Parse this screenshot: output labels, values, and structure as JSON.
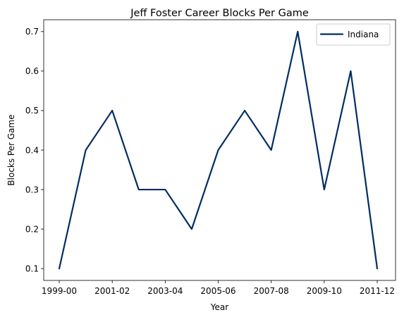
{
  "chart_data": {
    "type": "line",
    "title": "Jeff Foster  Career Blocks Per Game",
    "xlabel": "Year",
    "ylabel": "Blocks Per Game",
    "x": [
      "1999-00",
      "2000-01",
      "2001-02",
      "2002-03",
      "2003-04",
      "2004-05",
      "2005-06",
      "2006-07",
      "2007-08",
      "2008-09",
      "2009-10",
      "2010-11",
      "2011-12"
    ],
    "x_tick_labels": [
      "1999-00",
      "2001-02",
      "2003-04",
      "2005-06",
      "2007-08",
      "2009-10",
      "2011-12"
    ],
    "y_ticks": [
      "0.1",
      "0.2",
      "0.3",
      "0.4",
      "0.5",
      "0.6",
      "0.7"
    ],
    "ylim": [
      0.07,
      0.73
    ],
    "grid": false,
    "legend_position": "top-right",
    "series": [
      {
        "name": "Indiana",
        "color": "#002D62",
        "values": [
          0.1,
          0.4,
          0.5,
          0.3,
          0.3,
          0.2,
          0.4,
          0.5,
          0.4,
          0.7,
          0.3,
          0.6,
          0.1
        ]
      }
    ]
  }
}
